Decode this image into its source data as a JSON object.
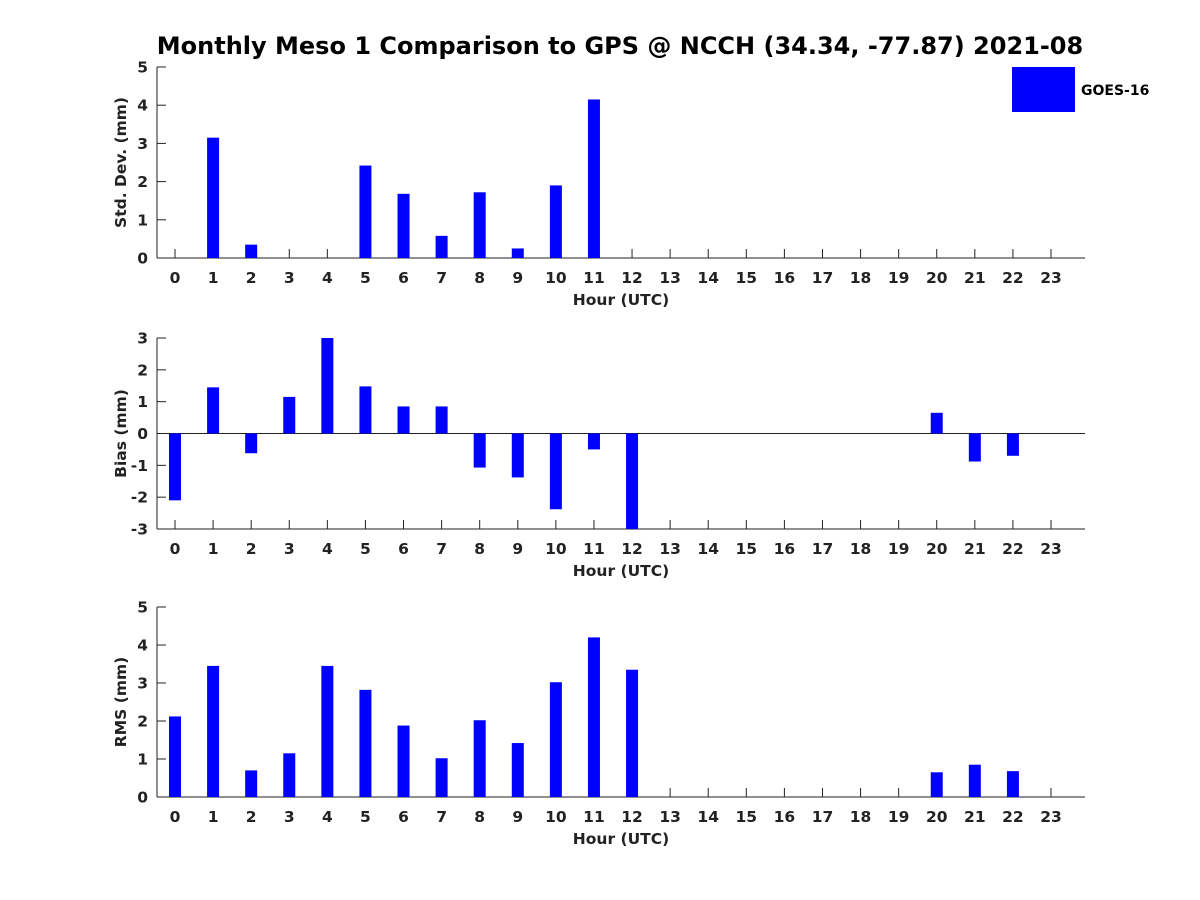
{
  "chart_data": {
    "title": "Monthly Meso 1 Comparison to GPS @ NCCH (34.34, -77.87) 2021-08",
    "legend": {
      "label": "GOES-16",
      "color": "#0000ff",
      "placement": "top-right"
    },
    "bar_color": "#0000ff",
    "x_categories": [
      0,
      1,
      2,
      3,
      4,
      5,
      6,
      7,
      8,
      9,
      10,
      11,
      12,
      13,
      14,
      15,
      16,
      17,
      18,
      19,
      20,
      21,
      22,
      23
    ],
    "panels": [
      {
        "type": "bar",
        "ylabel": "Std. Dev. (mm)",
        "xlabel": "Hour (UTC)",
        "ylim": [
          0,
          5
        ],
        "yticks": [
          0,
          1,
          2,
          3,
          4,
          5
        ],
        "zero_line": false,
        "values": [
          0,
          3.15,
          0.35,
          0,
          0,
          2.42,
          1.68,
          0.58,
          1.72,
          0.25,
          1.9,
          4.15,
          0,
          0,
          0,
          0,
          0,
          0,
          0,
          0,
          0,
          0,
          0,
          0
        ]
      },
      {
        "type": "bar",
        "ylabel": "Bias (mm)",
        "xlabel": "Hour (UTC)",
        "ylim": [
          -3,
          3
        ],
        "yticks": [
          -3,
          -2,
          -1,
          0,
          1,
          2,
          3
        ],
        "zero_line": true,
        "values": [
          -2.1,
          1.45,
          -0.62,
          1.15,
          3.0,
          1.48,
          0.85,
          0.85,
          -1.07,
          -1.38,
          -2.38,
          -0.5,
          -3.0,
          0,
          0,
          0,
          0,
          0,
          0,
          0,
          0.65,
          -0.88,
          -0.7,
          0
        ]
      },
      {
        "type": "bar",
        "ylabel": "RMS (mm)",
        "xlabel": "Hour (UTC)",
        "ylim": [
          0,
          5
        ],
        "yticks": [
          0,
          1,
          2,
          3,
          4,
          5
        ],
        "zero_line": false,
        "values": [
          2.12,
          3.45,
          0.7,
          1.15,
          3.45,
          2.82,
          1.88,
          1.02,
          2.02,
          1.42,
          3.02,
          4.2,
          3.35,
          0,
          0,
          0,
          0,
          0,
          0,
          0,
          0.65,
          0.85,
          0.68,
          0
        ]
      }
    ]
  }
}
